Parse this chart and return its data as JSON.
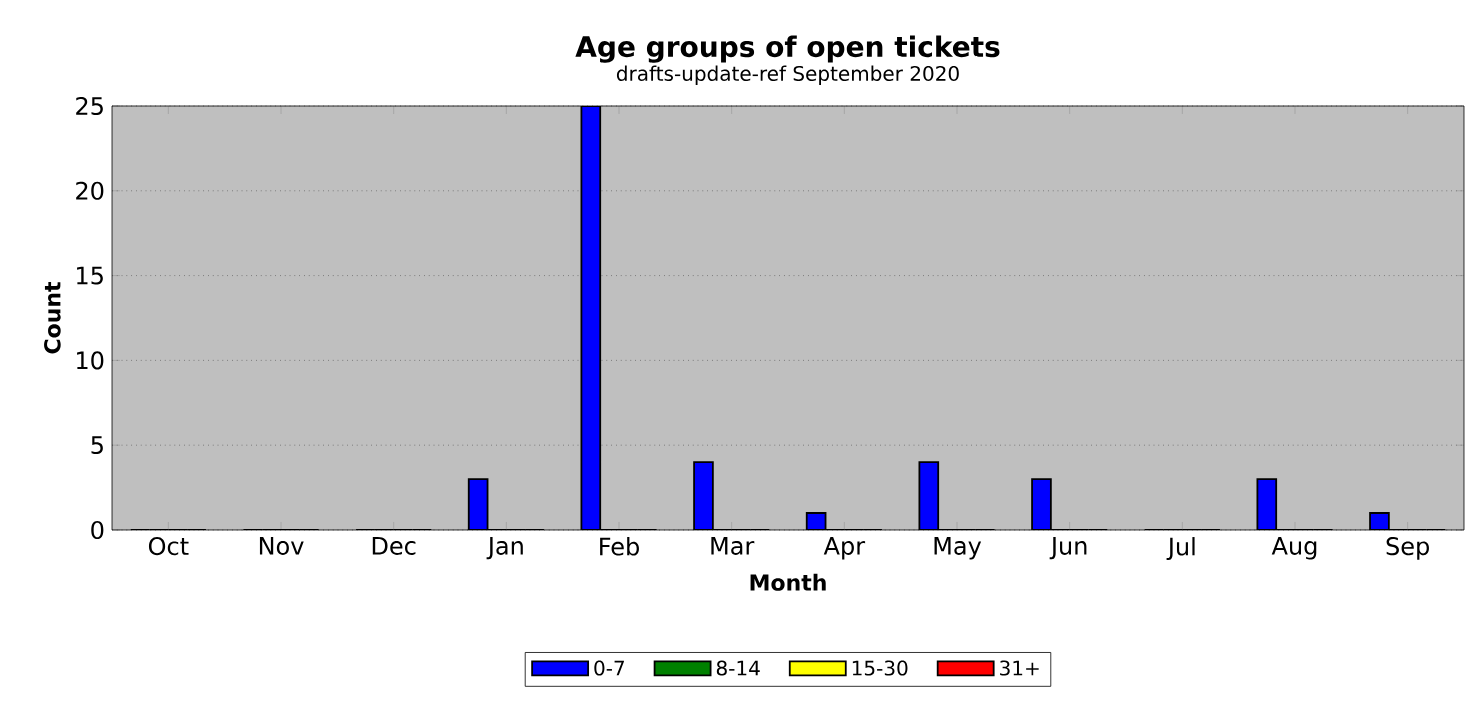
{
  "chart_data": {
    "type": "bar",
    "title": "Age groups of open tickets",
    "subtitle": "drafts-update-ref September 2020",
    "xlabel": "Month",
    "ylabel": "Count",
    "categories": [
      "Oct",
      "Nov",
      "Dec",
      "Jan",
      "Feb",
      "Mar",
      "Apr",
      "May",
      "Jun",
      "Jul",
      "Aug",
      "Sep"
    ],
    "series": [
      {
        "name": "0-7",
        "color": "#0000ff",
        "values": [
          0,
          0,
          0,
          3,
          25,
          4,
          1,
          4,
          3,
          0,
          3,
          1
        ]
      },
      {
        "name": "8-14",
        "color": "#008000",
        "values": [
          0,
          0,
          0,
          0,
          0,
          0,
          0,
          0,
          0,
          0,
          0,
          0
        ]
      },
      {
        "name": "15-30",
        "color": "#ffff00",
        "values": [
          0,
          0,
          0,
          0,
          0,
          0,
          0,
          0,
          0,
          0,
          0,
          0
        ]
      },
      {
        "name": "31+",
        "color": "#ff0000",
        "values": [
          0,
          0,
          0,
          0,
          0,
          0,
          0,
          0,
          0,
          0,
          0,
          0
        ]
      }
    ],
    "ylim": [
      0,
      25
    ],
    "yticks": [
      0,
      5,
      10,
      15,
      20,
      25
    ],
    "grid": "y",
    "legend": "bottom"
  }
}
